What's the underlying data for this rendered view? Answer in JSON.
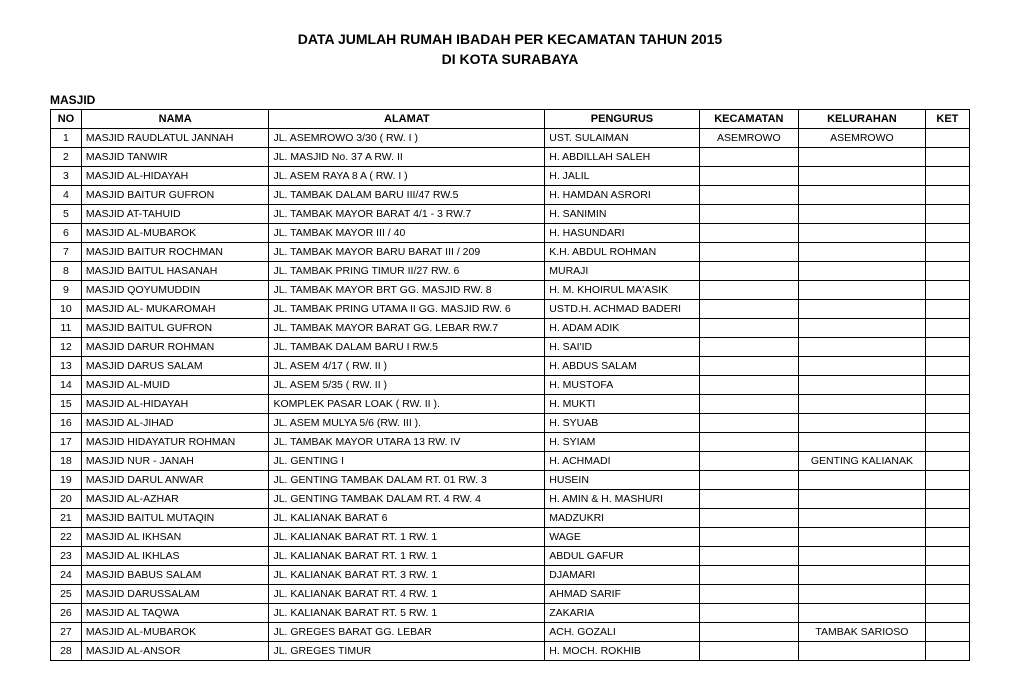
{
  "title_line1": "DATA JUMLAH RUMAH IBADAH PER KECAMATAN TAHUN 2015",
  "title_line2": "DI KOTA SURABAYA",
  "section_label": "MASJID",
  "headers": {
    "no": "NO",
    "nama": "NAMA",
    "alamat": "ALAMAT",
    "pengurus": "PENGURUS",
    "kecamatan": "KECAMATAN",
    "kelurahan": "KELURAHAN",
    "ket": "KET"
  },
  "rows": [
    {
      "no": "1",
      "nama": "MASJID RAUDLATUL JANNAH",
      "alamat": "JL. ASEMROWO 3/30  ( RW.  I )",
      "pengurus": "UST. SULAIMAN",
      "kecamatan": "ASEMROWO",
      "kelurahan": "ASEMROWO",
      "ket": ""
    },
    {
      "no": "2",
      "nama": "MASJID TANWIR",
      "alamat": "JL. MASJID No. 37 A  RW. II",
      "pengurus": "H. ABDILLAH SALEH",
      "kecamatan": "",
      "kelurahan": "",
      "ket": ""
    },
    {
      "no": "3",
      "nama": "MASJID AL-HIDAYAH",
      "alamat": "JL. ASEM RAYA 8 A  ( RW.  I )",
      "pengurus": "H. JALIL",
      "kecamatan": "",
      "kelurahan": "",
      "ket": ""
    },
    {
      "no": "4",
      "nama": "MASJID BAITUR GUFRON",
      "alamat": "JL. TAMBAK DALAM BARU III/47 RW.5",
      "pengurus": "H. HAMDAN ASRORI",
      "kecamatan": "",
      "kelurahan": "",
      "ket": ""
    },
    {
      "no": "5",
      "nama": "MASJID AT-TAHUID",
      "alamat": "JL. TAMBAK MAYOR BARAT 4/1 - 3 RW.7",
      "pengurus": "H. SANIMIN",
      "kecamatan": "",
      "kelurahan": "",
      "ket": ""
    },
    {
      "no": "6",
      "nama": "MASJID AL-MUBAROK",
      "alamat": "JL. TAMBAK MAYOR III / 40",
      "pengurus": "H. HASUNDARI",
      "kecamatan": "",
      "kelurahan": "",
      "ket": ""
    },
    {
      "no": "7",
      "nama": "MASJID BAITUR ROCHMAN",
      "alamat": "JL. TAMBAK MAYOR BARU BARAT III / 209",
      "pengurus": "K.H. ABDUL ROHMAN",
      "kecamatan": "",
      "kelurahan": "",
      "ket": ""
    },
    {
      "no": "8",
      "nama": "MASJID BAITUL HASANAH",
      "alamat": "JL. TAMBAK PRING TIMUR II/27  RW. 6",
      "pengurus": "MURAJI",
      "kecamatan": "",
      "kelurahan": "",
      "ket": ""
    },
    {
      "no": "9",
      "nama": "MASJID QOYUMUDDIN",
      "alamat": "JL. TAMBAK MAYOR BRT GG. MASJID  RW. 8",
      "pengurus": "H. M. KHOIRUL MA'ASIK",
      "kecamatan": "",
      "kelurahan": "",
      "ket": ""
    },
    {
      "no": "10",
      "nama": "MASJID AL- MUKAROMAH",
      "alamat": "JL. TAMBAK PRING UTAMA II GG. MASJID RW. 6",
      "pengurus": "USTD.H. ACHMAD BADERI",
      "kecamatan": "",
      "kelurahan": "",
      "ket": ""
    },
    {
      "no": "11",
      "nama": "MASJID BAITUL GUFRON",
      "alamat": "JL. TAMBAK MAYOR BARAT GG. LEBAR  RW.7",
      "pengurus": "H. ADAM ADIK",
      "kecamatan": "",
      "kelurahan": "",
      "ket": ""
    },
    {
      "no": "12",
      "nama": "MASJID DARUR ROHMAN",
      "alamat": "JL. TAMBAK DALAM BARU I RW.5",
      "pengurus": "H. SAI'ID",
      "kecamatan": "",
      "kelurahan": "",
      "ket": ""
    },
    {
      "no": "13",
      "nama": "MASJID DARUS SALAM",
      "alamat": "JL. ASEM 4/17  ( RW.  II )",
      "pengurus": "H. ABDUS SALAM",
      "kecamatan": "",
      "kelurahan": "",
      "ket": ""
    },
    {
      "no": "14",
      "nama": "MASJID AL-MUID",
      "alamat": "JL. ASEM 5/35  ( RW.  II )",
      "pengurus": "H. MUSTOFA",
      "kecamatan": "",
      "kelurahan": "",
      "ket": ""
    },
    {
      "no": "15",
      "nama": "MASJID AL-HIDAYAH",
      "alamat": "KOMPLEK PASAR LOAK  ( RW.  II ).",
      "pengurus": "H. MUKTI",
      "kecamatan": "",
      "kelurahan": "",
      "ket": ""
    },
    {
      "no": "16",
      "nama": "MASJID AL-JIHAD",
      "alamat": "JL. ASEM MULYA 5/6  (RW.  III ).",
      "pengurus": "H. SYUAB",
      "kecamatan": "",
      "kelurahan": "",
      "ket": ""
    },
    {
      "no": "17",
      "nama": "MASJID HIDAYATUR ROHMAN",
      "alamat": "JL. TAMBAK MAYOR UTARA 13  RW. IV",
      "pengurus": "H. SYIAM",
      "kecamatan": "",
      "kelurahan": "",
      "ket": ""
    },
    {
      "no": "18",
      "nama": "MASJID NUR - JANAH",
      "alamat": "JL. GENTING I",
      "pengurus": "H. ACHMADI",
      "kecamatan": "",
      "kelurahan": "GENTING KALIANAK",
      "ket": ""
    },
    {
      "no": "19",
      "nama": "MASJID DARUL ANWAR",
      "alamat": "JL. GENTING TAMBAK DALAM  RT. 01  RW. 3",
      "pengurus": "HUSEIN",
      "kecamatan": "",
      "kelurahan": "",
      "ket": ""
    },
    {
      "no": "20",
      "nama": "MASJID AL-AZHAR",
      "alamat": "JL. GENTING TAMBAK DALAM  RT. 4  RW. 4",
      "pengurus": "H. AMIN & H. MASHURI",
      "kecamatan": "",
      "kelurahan": "",
      "ket": ""
    },
    {
      "no": "21",
      "nama": "MASJID BAITUL MUTAQIN",
      "alamat": "JL. KALIANAK BARAT 6",
      "pengurus": "MADZUKRI",
      "kecamatan": "",
      "kelurahan": "",
      "ket": ""
    },
    {
      "no": "22",
      "nama": "MASJID AL IKHSAN",
      "alamat": "JL. KALIANAK BARAT RT. 1 RW. 1",
      "pengurus": "WAGE",
      "kecamatan": "",
      "kelurahan": "",
      "ket": ""
    },
    {
      "no": "23",
      "nama": "MASJID AL IKHLAS",
      "alamat": "JL. KALIANAK BARAT RT. 1 RW. 1",
      "pengurus": "ABDUL GAFUR",
      "kecamatan": "",
      "kelurahan": "",
      "ket": ""
    },
    {
      "no": "24",
      "nama": "MASJID BABUS SALAM",
      "alamat": "JL. KALIANAK BARAT RT. 3 RW. 1",
      "pengurus": "DJAMARI",
      "kecamatan": "",
      "kelurahan": "",
      "ket": ""
    },
    {
      "no": "25",
      "nama": "MASJID DARUSSALAM",
      "alamat": "JL. KALIANAK BARAT RT. 4 RW. 1",
      "pengurus": "AHMAD SARIF",
      "kecamatan": "",
      "kelurahan": "",
      "ket": ""
    },
    {
      "no": "26",
      "nama": "MASJID AL TAQWA",
      "alamat": "JL. KALIANAK BARAT RT. 5 RW. 1",
      "pengurus": "ZAKARIA",
      "kecamatan": "",
      "kelurahan": "",
      "ket": ""
    },
    {
      "no": "27",
      "nama": "MASJID AL-MUBAROK",
      "alamat": "JL. GREGES BARAT GG. LEBAR",
      "pengurus": "ACH. GOZALI",
      "kecamatan": "",
      "kelurahan": "TAMBAK SARIOSO",
      "ket": ""
    },
    {
      "no": "28",
      "nama": "MASJID AL-ANSOR",
      "alamat": "JL. GREGES TIMUR",
      "pengurus": "H. MOCH. ROKHIB",
      "kecamatan": "",
      "kelurahan": "",
      "ket": ""
    }
  ]
}
